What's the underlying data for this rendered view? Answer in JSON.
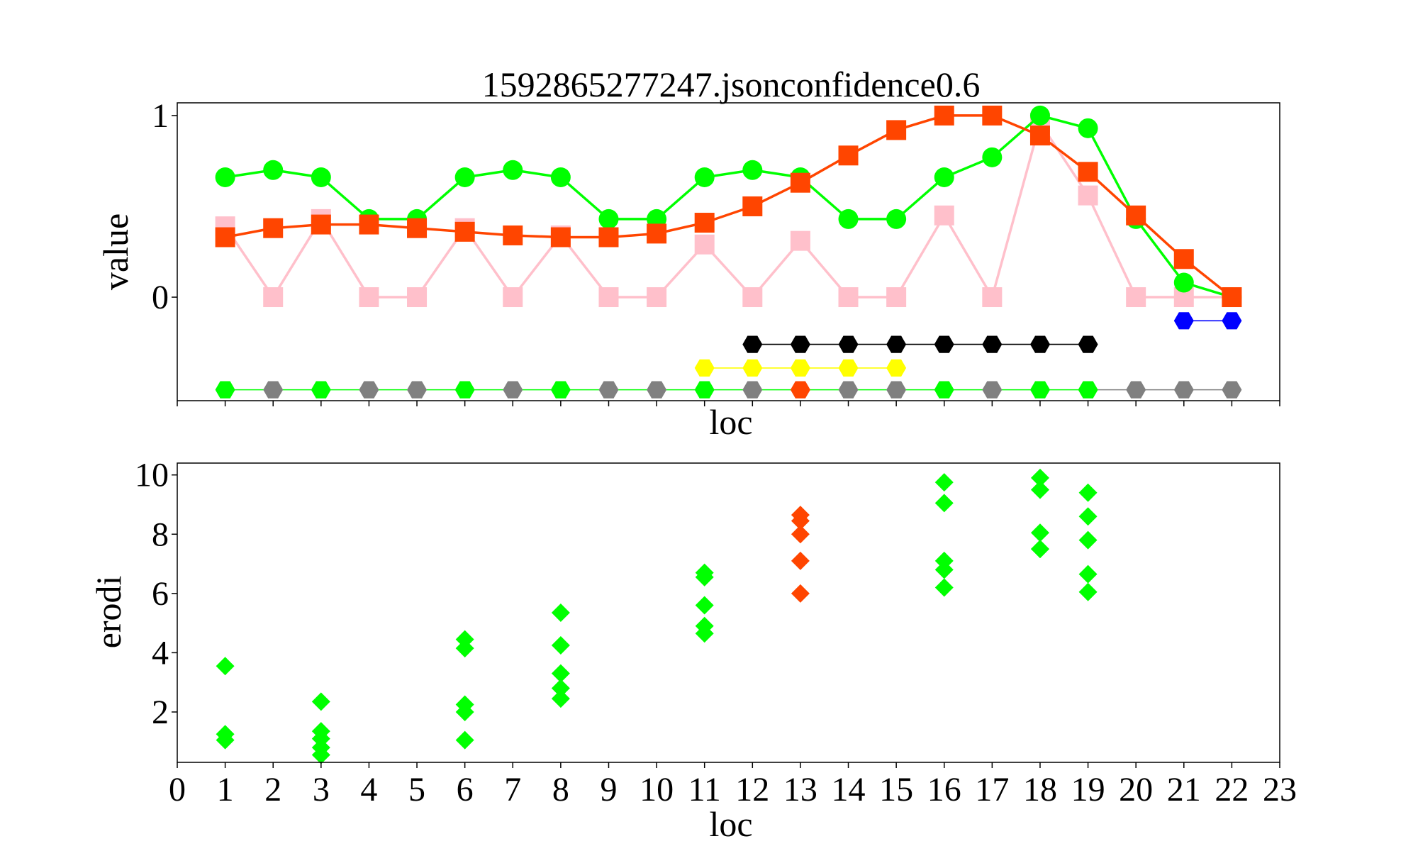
{
  "figure": {
    "title": "1592865277247.jsonconfidence0.6"
  },
  "chart_data": [
    {
      "type": "line",
      "title": "1592865277247.jsonconfidence0.6",
      "xlabel": "loc",
      "ylabel": "value",
      "xlim": [
        0,
        23
      ],
      "ylim": [
        -0.57,
        1.07
      ],
      "yticks": [
        "0",
        "1"
      ],
      "yticks_values": [
        0,
        1
      ],
      "series": [
        {
          "color": "#ffc0cb",
          "marker": "square",
          "x": [
            1,
            2,
            3,
            4,
            5,
            6,
            7,
            8,
            9,
            10,
            11,
            12,
            13,
            14,
            15,
            16,
            17,
            18,
            19,
            20,
            21,
            22
          ],
          "y": [
            0.39,
            0,
            0.43,
            0,
            0,
            0.38,
            0,
            0.34,
            0,
            0,
            0.29,
            0,
            0.31,
            0,
            0,
            0.45,
            0,
            0.96,
            0.56,
            0,
            0,
            0
          ]
        },
        {
          "color": "#00ff00",
          "marker": "circle",
          "x": [
            1,
            2,
            3,
            4,
            5,
            6,
            7,
            8,
            9,
            10,
            11,
            12,
            13,
            14,
            15,
            16,
            17,
            18,
            19,
            20,
            21,
            22
          ],
          "y": [
            0.66,
            0.7,
            0.66,
            0.43,
            0.43,
            0.66,
            0.7,
            0.66,
            0.43,
            0.43,
            0.66,
            0.7,
            0.66,
            0.43,
            0.43,
            0.66,
            0.77,
            1.0,
            0.93,
            0.43,
            0.08,
            0
          ]
        },
        {
          "color": "#ff4500",
          "marker": "square",
          "x": [
            1,
            2,
            3,
            4,
            5,
            6,
            7,
            8,
            9,
            10,
            11,
            12,
            13,
            14,
            15,
            16,
            17,
            18,
            19,
            20,
            21,
            22
          ],
          "y": [
            0.33,
            0.38,
            0.4,
            0.4,
            0.38,
            0.36,
            0.34,
            0.33,
            0.33,
            0.35,
            0.41,
            0.5,
            0.63,
            0.78,
            0.92,
            1.0,
            1.0,
            0.89,
            0.69,
            0.45,
            0.21,
            0
          ]
        },
        {
          "color": "#0000ff",
          "marker": "hexagon",
          "x": [
            21,
            22
          ],
          "y": [
            -0.13,
            -0.13
          ]
        },
        {
          "color": "#000000",
          "marker": "hexagon",
          "x": [
            12,
            13,
            14,
            15,
            16,
            17,
            18,
            19
          ],
          "y": [
            -0.26,
            -0.26,
            -0.26,
            -0.26,
            -0.26,
            -0.26,
            -0.26,
            -0.26
          ]
        },
        {
          "color": "#ffff00",
          "marker": "hexagon",
          "x": [
            11,
            12,
            13,
            14,
            15
          ],
          "y": [
            -0.39,
            -0.39,
            -0.39,
            -0.39,
            -0.39
          ]
        },
        {
          "color": "#808080",
          "marker": "hexagon",
          "x": [
            1,
            2,
            3,
            4,
            5,
            6,
            7,
            8,
            9,
            10,
            11,
            12,
            13,
            14,
            15,
            16,
            17,
            18,
            19,
            20,
            21,
            22
          ],
          "y": [
            -0.51,
            -0.51,
            -0.51,
            -0.51,
            -0.51,
            -0.51,
            -0.51,
            -0.51,
            -0.51,
            -0.51,
            -0.51,
            -0.51,
            -0.51,
            -0.51,
            -0.51,
            -0.51,
            -0.51,
            -0.51,
            -0.51,
            -0.51,
            -0.51,
            -0.51
          ],
          "point_colors": [
            "#00ff00",
            "#808080",
            "#00ff00",
            "#808080",
            "#808080",
            "#00ff00",
            "#808080",
            "#00ff00",
            "#808080",
            "#808080",
            "#00ff00",
            "#808080",
            "#ff4500",
            "#808080",
            "#808080",
            "#00ff00",
            "#808080",
            "#00ff00",
            "#00ff00",
            "#808080",
            "#808080",
            "#808080"
          ],
          "segment_colors": [
            "#00ff00",
            "#00ff00",
            "#00ff00",
            "#00ff00",
            "#00ff00",
            "#00ff00",
            "#00ff00",
            "#00ff00",
            "#00ff00",
            "#00ff00",
            "#00ff00",
            "#00ff00",
            "#00ff00",
            "#00ff00",
            "#00ff00",
            "#00ff00",
            "#00ff00",
            "#00ff00",
            "#808080",
            "#808080",
            "#808080"
          ]
        }
      ]
    },
    {
      "type": "scatter",
      "xlabel": "loc",
      "ylabel": "erodi",
      "xlim": [
        0,
        23
      ],
      "ylim": [
        0.3,
        10.4
      ],
      "xticks": [
        "0",
        "1",
        "2",
        "3",
        "4",
        "5",
        "6",
        "7",
        "8",
        "9",
        "10",
        "11",
        "12",
        "13",
        "14",
        "15",
        "16",
        "17",
        "18",
        "19",
        "20",
        "21",
        "22",
        "23"
      ],
      "xticks_values": [
        0,
        1,
        2,
        3,
        4,
        5,
        6,
        7,
        8,
        9,
        10,
        11,
        12,
        13,
        14,
        15,
        16,
        17,
        18,
        19,
        20,
        21,
        22,
        23
      ],
      "yticks": [
        "2",
        "4",
        "6",
        "8",
        "10"
      ],
      "yticks_values": [
        2,
        4,
        6,
        8,
        10
      ],
      "series": [
        {
          "color": "#00ff00",
          "marker": "diamond",
          "x": [
            1,
            1,
            1,
            3,
            3,
            3,
            3,
            3,
            6,
            6,
            6,
            6,
            6,
            8,
            8,
            8,
            8,
            8,
            11,
            11,
            11,
            11,
            11,
            16,
            16,
            16,
            16,
            16,
            18,
            18,
            18,
            18,
            18,
            19,
            19,
            19,
            19,
            19
          ],
          "y": [
            3.55,
            1.25,
            1.05,
            2.35,
            1.35,
            1.1,
            0.8,
            0.55,
            4.45,
            4.15,
            2.25,
            2.0,
            1.05,
            5.35,
            4.25,
            3.3,
            2.8,
            2.45,
            6.7,
            6.55,
            5.6,
            4.9,
            4.65,
            9.75,
            9.05,
            7.1,
            6.8,
            6.2,
            9.9,
            9.5,
            8.05,
            7.5,
            7.5,
            9.4,
            8.6,
            7.8,
            6.65,
            6.05
          ]
        },
        {
          "color": "#ff4500",
          "marker": "diamond",
          "x": [
            13,
            13,
            13,
            13,
            13
          ],
          "y": [
            8.65,
            8.45,
            8.0,
            7.1,
            6.0
          ]
        }
      ]
    }
  ]
}
